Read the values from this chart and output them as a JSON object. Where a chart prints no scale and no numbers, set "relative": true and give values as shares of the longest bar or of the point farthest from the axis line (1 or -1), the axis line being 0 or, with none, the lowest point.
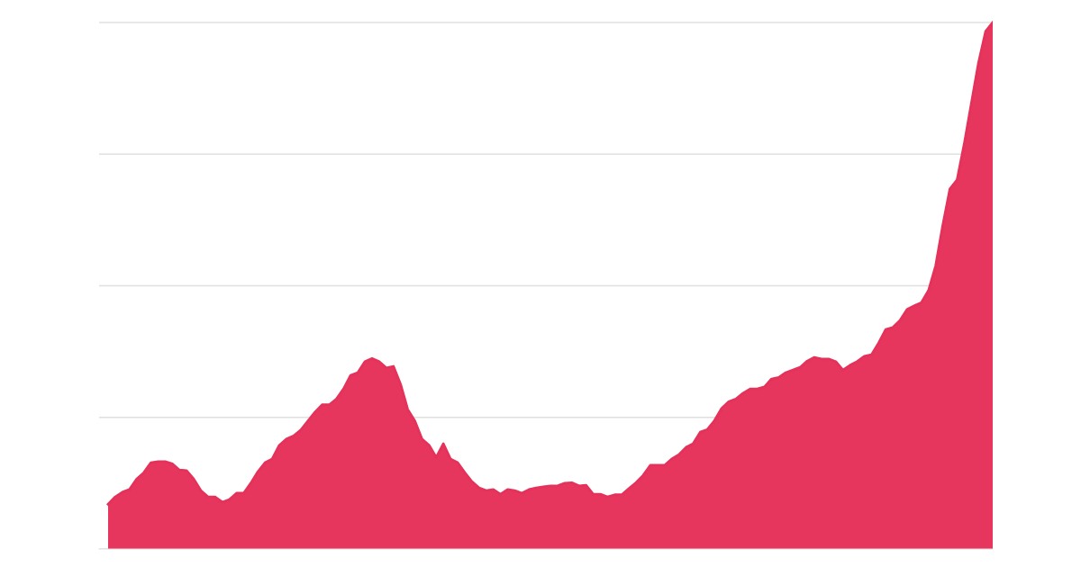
{
  "chart_data": {
    "type": "area",
    "relative": true,
    "grid": "y",
    "color": "#e5325a",
    "categories": [
      null,
      null,
      null,
      null,
      null,
      null,
      null,
      null,
      null,
      null,
      null,
      null,
      null,
      null,
      null,
      null,
      null,
      null,
      null,
      null,
      null,
      null,
      null,
      null,
      null,
      null,
      null,
      null,
      null,
      null,
      null,
      null,
      null,
      null,
      null,
      null,
      null,
      null,
      null,
      null,
      null,
      null,
      null,
      null,
      null,
      null,
      null,
      null,
      null,
      null,
      null,
      null,
      null,
      null,
      null,
      null,
      null,
      null,
      null,
      null,
      null,
      null,
      null,
      null,
      null,
      null,
      null,
      null,
      null,
      null,
      null,
      null,
      null,
      null,
      null,
      null,
      null,
      null,
      null,
      null,
      null,
      null,
      null,
      null,
      null,
      null,
      null,
      null,
      null,
      null,
      null,
      null,
      null,
      null,
      null,
      null,
      null,
      null,
      null,
      null,
      null,
      null,
      null,
      null,
      null,
      null,
      null,
      null,
      null,
      null,
      null,
      null,
      null,
      null,
      null,
      null,
      null,
      null,
      null,
      null,
      null,
      null,
      null,
      null,
      null
    ],
    "values": [
      0.085,
      0.099,
      0.108,
      0.113,
      0.133,
      0.145,
      0.164,
      0.166,
      0.166,
      0.162,
      0.15,
      0.149,
      0.133,
      0.111,
      0.099,
      0.099,
      0.089,
      0.094,
      0.106,
      0.106,
      0.125,
      0.147,
      0.164,
      0.171,
      0.197,
      0.209,
      0.215,
      0.226,
      0.243,
      0.26,
      0.274,
      0.274,
      0.285,
      0.304,
      0.33,
      0.335,
      0.356,
      0.362,
      0.356,
      0.344,
      0.347,
      0.313,
      0.265,
      0.243,
      0.209,
      0.197,
      0.174,
      0.2,
      0.171,
      0.164,
      0.145,
      0.128,
      0.116,
      0.111,
      0.113,
      0.104,
      0.113,
      0.111,
      0.106,
      0.113,
      0.116,
      0.118,
      0.12,
      0.12,
      0.125,
      0.126,
      0.12,
      0.121,
      0.104,
      0.104,
      0.099,
      0.103,
      0.103,
      0.115,
      0.126,
      0.14,
      0.159,
      0.159,
      0.159,
      0.171,
      0.179,
      0.193,
      0.2,
      0.222,
      0.227,
      0.244,
      0.267,
      0.28,
      0.285,
      0.296,
      0.304,
      0.304,
      0.308,
      0.323,
      0.326,
      0.335,
      0.34,
      0.345,
      0.357,
      0.364,
      0.361,
      0.361,
      0.356,
      0.34,
      0.349,
      0.356,
      0.366,
      0.369,
      0.391,
      0.417,
      0.421,
      0.434,
      0.455,
      0.462,
      0.468,
      0.491,
      0.538,
      0.615,
      0.684,
      0.701,
      0.769,
      0.846,
      0.923,
      0.983,
      1
    ]
  }
}
